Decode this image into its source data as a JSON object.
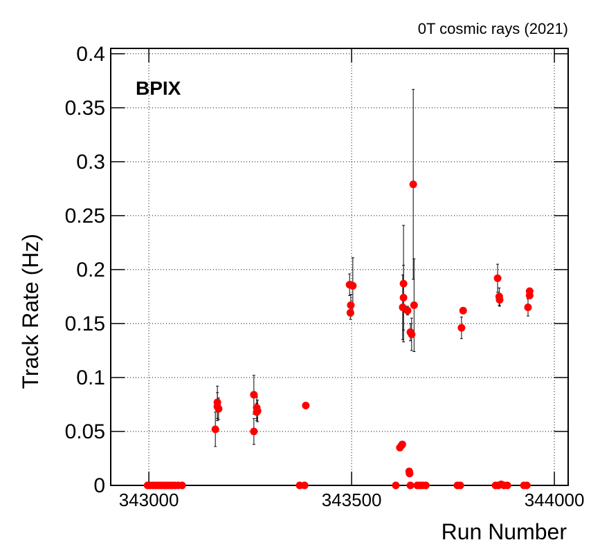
{
  "chart_data": {
    "type": "scatter",
    "title": "0T cosmic rays (2021)",
    "annotation": "BPIX",
    "x_label": "Run Number",
    "y_label": "Track Rate (Hz)",
    "xlim": [
      342906,
      344034
    ],
    "ylim": [
      0,
      0.405
    ],
    "xticks": [
      343000,
      343500,
      344000
    ],
    "yticks": [
      0,
      0.05,
      0.1,
      0.15,
      0.2,
      0.25,
      0.3,
      0.35,
      0.4
    ],
    "grid": true,
    "color": "#ff0000",
    "x": [
      342997,
      343003,
      343010,
      343017,
      343024,
      343031,
      343038,
      343044,
      343051,
      343058,
      343065,
      343072,
      343082,
      343164,
      343169,
      343169,
      343172,
      343259,
      343259,
      343266,
      343268,
      343266,
      343372,
      343384,
      343387,
      343495,
      343497,
      343498,
      343503,
      343609,
      343619,
      343623,
      343625,
      343628,
      343628,
      343626,
      343638,
      343642,
      343643,
      343645,
      343648,
      343645,
      343652,
      343654,
      343662,
      343669,
      343676,
      343683,
      343761,
      343768,
      343771,
      343775,
      343855,
      343862,
      343860,
      343864,
      343865,
      343869,
      343876,
      343884,
      343925,
      343932,
      343935,
      343939,
      343939
    ],
    "values": [
      0,
      0,
      0,
      0,
      0,
      0,
      0,
      0,
      0,
      0,
      0,
      0,
      0,
      0.052,
      0.077,
      0.073,
      0.071,
      0.084,
      0.05,
      0.072,
      0.069,
      0.068,
      0,
      0,
      0.074,
      0.186,
      0.16,
      0.167,
      0.185,
      0,
      0.035,
      0.037,
      0.038,
      0.187,
      0.174,
      0.165,
      0.162,
      0.013,
      0.011,
      0.142,
      0.14,
      0,
      0.279,
      0.167,
      0,
      0,
      0,
      0,
      0,
      0,
      0.146,
      0.162,
      0,
      0,
      0.192,
      0.175,
      0.172,
      0.001,
      0,
      0,
      0,
      0,
      0.165,
      0.18,
      0.176
    ],
    "errors": [
      0,
      0,
      0,
      0,
      0,
      0,
      0,
      0,
      0,
      0,
      0,
      0,
      0,
      0.016,
      0.015,
      0.013,
      0.01,
      0.018,
      0.012,
      0.01,
      0.01,
      0.008,
      0,
      0,
      0.002,
      0.01,
      0.006,
      0.01,
      0.026,
      0,
      0.002,
      0.002,
      0.002,
      0.054,
      0.03,
      0.03,
      0.004,
      0.002,
      0.002,
      0.008,
      0.015,
      0,
      0.088,
      0.043,
      0,
      0,
      0,
      0,
      0,
      0,
      0.01,
      0.002,
      0,
      0,
      0.013,
      0.008,
      0.006,
      0.001,
      0,
      0,
      0,
      0,
      0.008,
      0.003,
      0.003
    ]
  }
}
